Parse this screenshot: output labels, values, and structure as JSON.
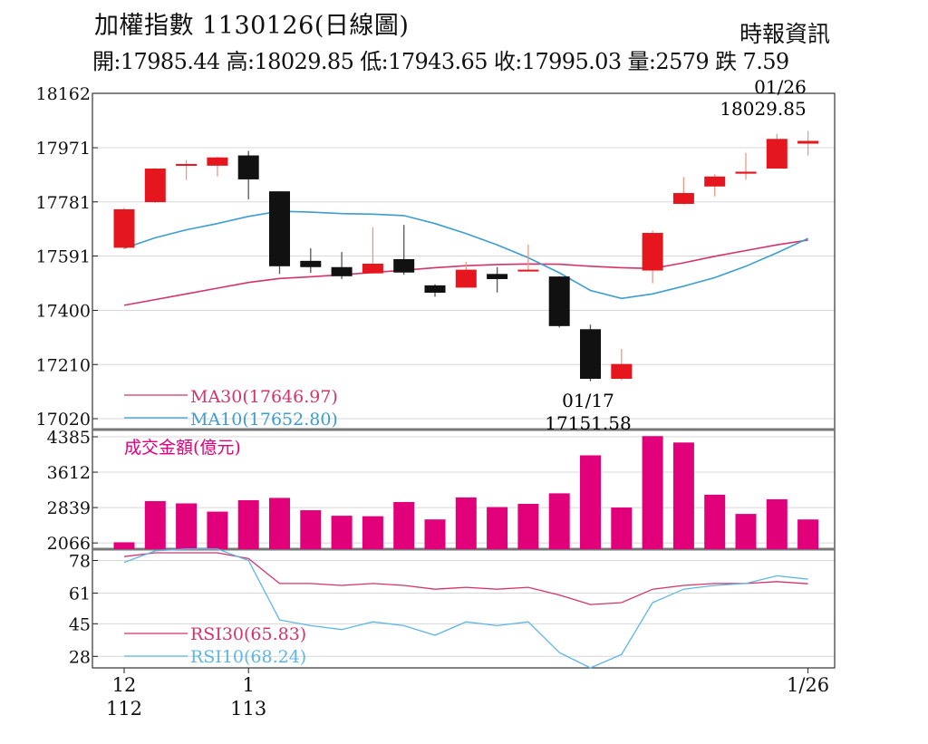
{
  "header": {
    "title": "加權指數 1130126(日線圖)",
    "source": "時報資訊",
    "ohlc": "開:17985.44 高:18029.85 低:17943.65 收:17995.03 量:2579 跌 7.59"
  },
  "colors": {
    "up": "#e5161d",
    "down": "#111111",
    "volume": "#e2007a",
    "ma30": "#d6336c",
    "ma10": "#3c9dcf",
    "rsi30": "#d6336c",
    "rsi10": "#5eb6e4",
    "grid": "#d8d8d8"
  },
  "chart_data": [
    {
      "type": "candlestick",
      "panel": "price",
      "yticks": [
        17020,
        17210,
        17400,
        17591,
        17781,
        17971,
        18162
      ],
      "ylim": [
        17020,
        18162
      ],
      "candles": [
        {
          "o": 17620,
          "h": 17760,
          "l": 17615,
          "c": 17755
        },
        {
          "o": 17780,
          "h": 17900,
          "l": 17778,
          "c": 17898
        },
        {
          "o": 17908,
          "h": 17928,
          "l": 17858,
          "c": 17914
        },
        {
          "o": 17908,
          "h": 17940,
          "l": 17870,
          "c": 17937
        },
        {
          "o": 17944,
          "h": 17960,
          "l": 17790,
          "c": 17860
        },
        {
          "o": 17818,
          "h": 17818,
          "l": 17528,
          "c": 17555
        },
        {
          "o": 17574,
          "h": 17618,
          "l": 17532,
          "c": 17552
        },
        {
          "o": 17552,
          "h": 17605,
          "l": 17510,
          "c": 17520
        },
        {
          "o": 17530,
          "h": 17692,
          "l": 17530,
          "c": 17564
        },
        {
          "o": 17580,
          "h": 17700,
          "l": 17525,
          "c": 17533
        },
        {
          "o": 17488,
          "h": 17492,
          "l": 17448,
          "c": 17462
        },
        {
          "o": 17480,
          "h": 17570,
          "l": 17480,
          "c": 17543
        },
        {
          "o": 17528,
          "h": 17552,
          "l": 17463,
          "c": 17510
        },
        {
          "o": 17538,
          "h": 17631,
          "l": 17538,
          "c": 17543
        },
        {
          "o": 17519,
          "h": 17520,
          "l": 17340,
          "c": 17345
        },
        {
          "o": 17334,
          "h": 17350,
          "l": 17151.58,
          "c": 17160
        },
        {
          "o": 17160,
          "h": 17265,
          "l": 17155,
          "c": 17212
        },
        {
          "o": 17540,
          "h": 17680,
          "l": 17495,
          "c": 17672
        },
        {
          "o": 17774,
          "h": 17868,
          "l": 17772,
          "c": 17812
        },
        {
          "o": 17835,
          "h": 17878,
          "l": 17800,
          "c": 17870
        },
        {
          "o": 17880,
          "h": 17953,
          "l": 17859,
          "c": 17887
        },
        {
          "o": 17898,
          "h": 18020,
          "l": 17898,
          "c": 18002
        },
        {
          "o": 17985.44,
          "h": 18029.85,
          "l": 17943.65,
          "c": 17995.03
        }
      ],
      "ma30": [
        17418,
        17438,
        17458,
        17478,
        17498,
        17512,
        17518,
        17525,
        17533,
        17541,
        17550,
        17557,
        17561,
        17563,
        17562,
        17555,
        17550,
        17547,
        17567,
        17590,
        17610,
        17630,
        17646.97
      ],
      "ma10": [
        17618,
        17655,
        17683,
        17705,
        17730,
        17748,
        17745,
        17740,
        17738,
        17733,
        17705,
        17670,
        17630,
        17585,
        17532,
        17470,
        17442,
        17458,
        17485,
        17515,
        17555,
        17602,
        17652.8
      ],
      "annotations": [
        {
          "label_date": "01/26",
          "label_value": "18029.85"
        },
        {
          "label_date": "01/17",
          "label_value": "17151.58"
        }
      ],
      "legend": [
        "MA30(17646.97)",
        "MA10(17652.80)"
      ]
    },
    {
      "type": "bar",
      "panel": "volume",
      "title": "成交金額(億元)",
      "yticks": [
        2066,
        2839,
        3612,
        4385
      ],
      "ylim": [
        1930,
        4385
      ],
      "values": [
        2080,
        2980,
        2930,
        2750,
        3000,
        3050,
        2780,
        2660,
        2650,
        2960,
        2580,
        3060,
        2850,
        2920,
        3150,
        3980,
        2840,
        4400,
        4260,
        3120,
        2700,
        3020,
        2579
      ]
    },
    {
      "type": "line",
      "panel": "rsi",
      "yticks": [
        28,
        45,
        61,
        78
      ],
      "ylim": [
        22,
        82
      ],
      "rsi30": [
        80,
        82,
        82,
        82,
        79,
        66,
        66,
        65,
        66,
        65,
        63,
        64,
        63,
        64,
        60,
        55,
        56,
        63,
        65,
        66,
        66,
        67,
        65.83
      ],
      "rsi10": [
        77,
        83,
        84,
        84,
        78,
        47,
        44,
        42,
        46,
        44,
        39,
        46,
        44,
        46,
        30,
        22,
        29,
        56,
        63,
        65,
        66,
        70,
        68.24
      ],
      "legend": [
        "RSI30(65.83)",
        "RSI10(68.24)"
      ]
    }
  ],
  "xaxis": {
    "ticks": [
      {
        "index": 0,
        "top": "12",
        "bottom": "112"
      },
      {
        "index": 4,
        "top": "1",
        "bottom": "113"
      },
      {
        "index": 22,
        "top": "1/26",
        "bottom": ""
      }
    ]
  }
}
